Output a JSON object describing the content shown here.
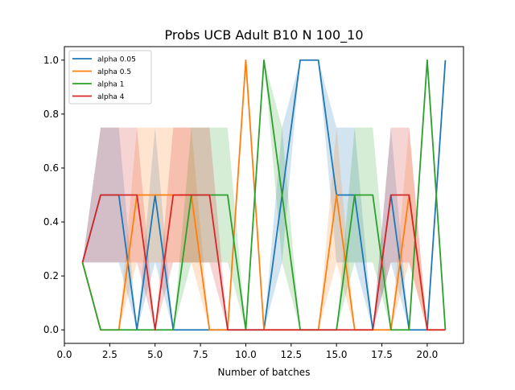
{
  "chart_data": {
    "type": "line",
    "title": "Probs UCB Adult B10 N 100_10",
    "xlabel": "Number of batches",
    "ylabel": "",
    "xlim": [
      0.0,
      22.0
    ],
    "ylim": [
      -0.05,
      1.05
    ],
    "xticks": [
      0.0,
      2.5,
      5.0,
      7.5,
      10.0,
      12.5,
      15.0,
      17.5,
      20.0
    ],
    "xtick_labels": [
      "0.0",
      "2.5",
      "5.0",
      "7.5",
      "10.0",
      "12.5",
      "15.0",
      "17.5",
      "20.0"
    ],
    "yticks": [
      0.0,
      0.2,
      0.4,
      0.6,
      0.8,
      1.0
    ],
    "ytick_labels": [
      "0.0",
      "0.2",
      "0.4",
      "0.6",
      "0.8",
      "1.0"
    ],
    "grid": false,
    "legend_position": "top-left",
    "x": [
      1,
      2,
      3,
      4,
      5,
      6,
      7,
      8,
      9,
      10,
      11,
      12,
      13,
      14,
      15,
      16,
      17,
      18,
      19,
      20,
      21
    ],
    "series": [
      {
        "name": "alpha 0.05",
        "color": "#1f77b4",
        "values": [
          0.25,
          0.5,
          0.5,
          0,
          0.5,
          0,
          0,
          0,
          0,
          0,
          0,
          0.5,
          1.0,
          1.0,
          0.5,
          0.5,
          0,
          0.5,
          0,
          0,
          1.0
        ],
        "lower": [
          0.25,
          0.25,
          0.25,
          0,
          0.25,
          0,
          0,
          0,
          0,
          0,
          0,
          0.25,
          1.0,
          1.0,
          0.25,
          0.25,
          0,
          0.25,
          0,
          0,
          1.0
        ],
        "upper": [
          0.25,
          0.75,
          0.75,
          0,
          0.75,
          0,
          0,
          0,
          0,
          0,
          0,
          0.75,
          1.0,
          1.0,
          0.75,
          0.75,
          0,
          0.75,
          0,
          0,
          1.0
        ]
      },
      {
        "name": "alpha 0.5",
        "color": "#ff7f0e",
        "values": [
          0.25,
          0,
          0,
          0.5,
          0.5,
          0.5,
          0.5,
          0,
          0,
          1.0,
          0,
          0,
          0,
          0,
          0.5,
          0,
          0,
          0,
          0.5,
          0,
          0
        ],
        "lower": [
          0.25,
          0,
          0,
          0.25,
          0.25,
          0.25,
          0.25,
          0,
          0,
          1.0,
          0,
          0,
          0,
          0,
          0.25,
          0,
          0,
          0,
          0.25,
          0,
          0
        ],
        "upper": [
          0.25,
          0,
          0,
          0.75,
          0.75,
          0.75,
          0.75,
          0,
          0,
          1.0,
          0,
          0,
          0,
          0,
          0.75,
          0,
          0,
          0,
          0.75,
          0,
          0
        ]
      },
      {
        "name": "alpha 1",
        "color": "#2ca02c",
        "values": [
          0.25,
          0,
          0,
          0,
          0,
          0,
          0.5,
          0.5,
          0.5,
          0,
          1.0,
          0.5,
          0,
          0,
          0,
          0.5,
          0.5,
          0,
          0,
          1.0,
          0
        ],
        "lower": [
          0.25,
          0,
          0,
          0,
          0,
          0,
          0.25,
          0.25,
          0.25,
          0,
          1.0,
          0.25,
          0,
          0,
          0,
          0.25,
          0.25,
          0,
          0,
          1.0,
          0
        ],
        "upper": [
          0.25,
          0,
          0,
          0,
          0,
          0,
          0.75,
          0.75,
          0.75,
          0,
          1.0,
          0.75,
          0,
          0,
          0,
          0.75,
          0.75,
          0,
          0,
          1.0,
          0
        ]
      },
      {
        "name": "alpha 4",
        "color": "#d62728",
        "values": [
          0.25,
          0.5,
          0.5,
          0.5,
          0,
          0.5,
          0.5,
          0.5,
          0,
          0,
          0,
          0,
          0,
          0,
          0,
          0,
          0,
          0.5,
          0.5,
          0,
          0
        ],
        "lower": [
          0.25,
          0.25,
          0.25,
          0.25,
          0,
          0.25,
          0.25,
          0.25,
          0,
          0,
          0,
          0,
          0,
          0,
          0,
          0,
          0,
          0.25,
          0.25,
          0,
          0
        ],
        "upper": [
          0.25,
          0.75,
          0.75,
          0.75,
          0,
          0.75,
          0.75,
          0.75,
          0,
          0,
          0,
          0,
          0,
          0,
          0,
          0,
          0,
          0.75,
          0.75,
          0,
          0
        ]
      }
    ]
  }
}
